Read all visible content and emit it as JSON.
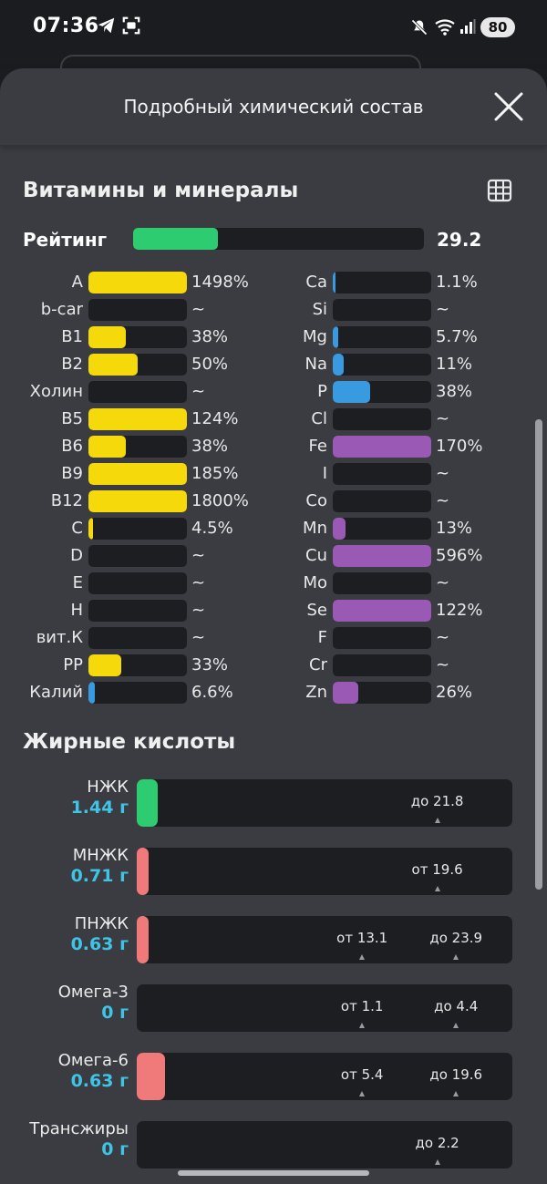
{
  "status_bar": {
    "time": "07:36",
    "icons": [
      "telegram-icon",
      "screen-capture-icon",
      "mute-icon",
      "wifi-icon",
      "signal-icon"
    ],
    "battery": "80"
  },
  "sheet": {
    "title": "Подробный химический состав",
    "close_icon": "close-icon"
  },
  "vitamins": {
    "title": "Витамины и минералы",
    "table_icon": "table-icon",
    "rating_label": "Рейтинг",
    "rating_value": "29.2",
    "rating_fill_fraction": 0.292,
    "left": [
      {
        "label": "A",
        "value": "1498%",
        "fill": 1.0,
        "color": "#f5d90a"
      },
      {
        "label": "b-car",
        "value": "~",
        "fill": 0,
        "color": "#f5d90a"
      },
      {
        "label": "B1",
        "value": "38%",
        "fill": 0.38,
        "color": "#f5d90a"
      },
      {
        "label": "B2",
        "value": "50%",
        "fill": 0.5,
        "color": "#f5d90a"
      },
      {
        "label": "Холин",
        "value": "~",
        "fill": 0,
        "color": "#f5d90a"
      },
      {
        "label": "B5",
        "value": "124%",
        "fill": 1.0,
        "color": "#f5d90a"
      },
      {
        "label": "B6",
        "value": "38%",
        "fill": 0.38,
        "color": "#f5d90a"
      },
      {
        "label": "B9",
        "value": "185%",
        "fill": 1.0,
        "color": "#f5d90a"
      },
      {
        "label": "B12",
        "value": "1800%",
        "fill": 1.0,
        "color": "#f5d90a"
      },
      {
        "label": "C",
        "value": "4.5%",
        "fill": 0.045,
        "color": "#f5d90a"
      },
      {
        "label": "D",
        "value": "~",
        "fill": 0,
        "color": "#f5d90a"
      },
      {
        "label": "E",
        "value": "~",
        "fill": 0,
        "color": "#f5d90a"
      },
      {
        "label": "H",
        "value": "~",
        "fill": 0,
        "color": "#f5d90a"
      },
      {
        "label": "вит.К",
        "value": "~",
        "fill": 0,
        "color": "#f5d90a"
      },
      {
        "label": "PP",
        "value": "33%",
        "fill": 0.33,
        "color": "#f5d90a"
      },
      {
        "label": "Калий",
        "value": "6.6%",
        "fill": 0.066,
        "color": "#3a9ae0"
      }
    ],
    "right": [
      {
        "label": "Ca",
        "value": "1.1%",
        "fill": 0.011,
        "color": "#3a9ae0"
      },
      {
        "label": "Si",
        "value": "~",
        "fill": 0,
        "color": "#3a9ae0"
      },
      {
        "label": "Mg",
        "value": "5.7%",
        "fill": 0.057,
        "color": "#3a9ae0"
      },
      {
        "label": "Na",
        "value": "11%",
        "fill": 0.11,
        "color": "#3a9ae0"
      },
      {
        "label": "P",
        "value": "38%",
        "fill": 0.38,
        "color": "#3a9ae0"
      },
      {
        "label": "Cl",
        "value": "~",
        "fill": 0,
        "color": "#3a9ae0"
      },
      {
        "label": "Fe",
        "value": "170%",
        "fill": 1.0,
        "color": "#9b59b6"
      },
      {
        "label": "I",
        "value": "~",
        "fill": 0,
        "color": "#9b59b6"
      },
      {
        "label": "Co",
        "value": "~",
        "fill": 0,
        "color": "#9b59b6"
      },
      {
        "label": "Mn",
        "value": "13%",
        "fill": 0.13,
        "color": "#9b59b6"
      },
      {
        "label": "Cu",
        "value": "596%",
        "fill": 1.0,
        "color": "#9b59b6"
      },
      {
        "label": "Mo",
        "value": "~",
        "fill": 0,
        "color": "#9b59b6"
      },
      {
        "label": "Se",
        "value": "122%",
        "fill": 1.0,
        "color": "#9b59b6"
      },
      {
        "label": "F",
        "value": "~",
        "fill": 0,
        "color": "#9b59b6"
      },
      {
        "label": "Cr",
        "value": "~",
        "fill": 0,
        "color": "#9b59b6"
      },
      {
        "label": "Zn",
        "value": "26%",
        "fill": 0.26,
        "color": "#9b59b6"
      }
    ]
  },
  "fatty_acids": {
    "title": "Жирные кислоты",
    "rows": [
      {
        "name": "НЖК",
        "amount": "1.44 г",
        "fill": 0.055,
        "color": "#2ecc71",
        "markers": [
          {
            "text": "до 21.8",
            "pos": 0.8
          }
        ]
      },
      {
        "name": "МНЖК",
        "amount": "0.71 г",
        "fill": 0.032,
        "color": "#f07a7a",
        "markers": [
          {
            "text": "от 19.6",
            "pos": 0.8
          }
        ]
      },
      {
        "name": "ПНЖК",
        "amount": "0.63 г",
        "fill": 0.032,
        "color": "#f07a7a",
        "markers": [
          {
            "text": "от 13.1",
            "pos": 0.6
          },
          {
            "text": "до 23.9",
            "pos": 0.85
          }
        ]
      },
      {
        "name": "Омега-3",
        "amount": "0 г",
        "fill": 0,
        "color": "#f07a7a",
        "markers": [
          {
            "text": "от 1.1",
            "pos": 0.6
          },
          {
            "text": "до 4.4",
            "pos": 0.85
          }
        ]
      },
      {
        "name": "Омега-6",
        "amount": "0.63 г",
        "fill": 0.075,
        "color": "#f07a7a",
        "markers": [
          {
            "text": "от 5.4",
            "pos": 0.6
          },
          {
            "text": "до 19.6",
            "pos": 0.85
          }
        ]
      },
      {
        "name": "Трансжиры",
        "amount": "0 г",
        "fill": 0,
        "color": "#f07a7a",
        "markers": [
          {
            "text": "до 2.2",
            "pos": 0.8
          }
        ]
      }
    ]
  }
}
